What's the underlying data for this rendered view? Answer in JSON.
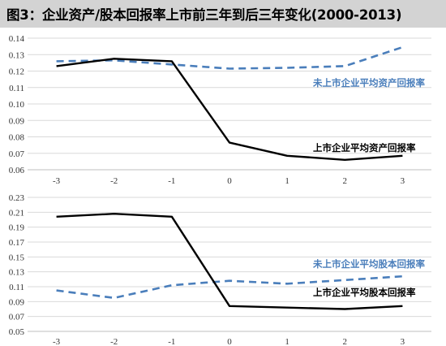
{
  "title": "图3：企业资产/股本回报率上市前三年到后三年变化(2000-2013)",
  "colors": {
    "listed": "#000000",
    "unlisted": "#4a7ebb",
    "grid": "#d9d9d9",
    "title_band": "#d3d3d3"
  },
  "chart_data": [
    {
      "type": "line",
      "x": [
        -3,
        -2,
        -1,
        0,
        1,
        2,
        3
      ],
      "x_tick_labels": [
        "-3",
        "-2",
        "-1",
        "0",
        "1",
        "2",
        "3"
      ],
      "ylim": [
        0.06,
        0.14
      ],
      "y_tick_labels": [
        "0.06",
        "0.07",
        "0.08",
        "0.09",
        "0.10",
        "0.11",
        "0.12",
        "0.13",
        "0.14"
      ],
      "grid": true,
      "series": [
        {
          "name": "未上市企业平均资产回报率",
          "style": "dashed",
          "values": [
            0.126,
            0.1265,
            0.124,
            0.1215,
            0.122,
            0.123,
            0.1345
          ]
        },
        {
          "name": "上市企业平均资产回报率",
          "style": "solid",
          "values": [
            0.123,
            0.1275,
            0.126,
            0.0765,
            0.0685,
            0.066,
            0.0685
          ]
        }
      ]
    },
    {
      "type": "line",
      "x": [
        -3,
        -2,
        -1,
        0,
        1,
        2,
        3
      ],
      "x_tick_labels": [
        "-3",
        "-2",
        "-1",
        "0",
        "1",
        "2",
        "3"
      ],
      "ylim": [
        0.05,
        0.23
      ],
      "y_tick_labels": [
        "0.05",
        "0.07",
        "0.09",
        "0.11",
        "0.13",
        "0.15",
        "0.17",
        "0.19",
        "0.21",
        "0.23"
      ],
      "grid": true,
      "series": [
        {
          "name": "未上市企业平均股本回报率",
          "style": "dashed",
          "values": [
            0.105,
            0.095,
            0.112,
            0.118,
            0.114,
            0.119,
            0.124
          ]
        },
        {
          "name": "上市企业平均股本回报率",
          "style": "solid",
          "values": [
            0.204,
            0.208,
            0.204,
            0.084,
            0.082,
            0.08,
            0.084
          ]
        }
      ]
    }
  ]
}
